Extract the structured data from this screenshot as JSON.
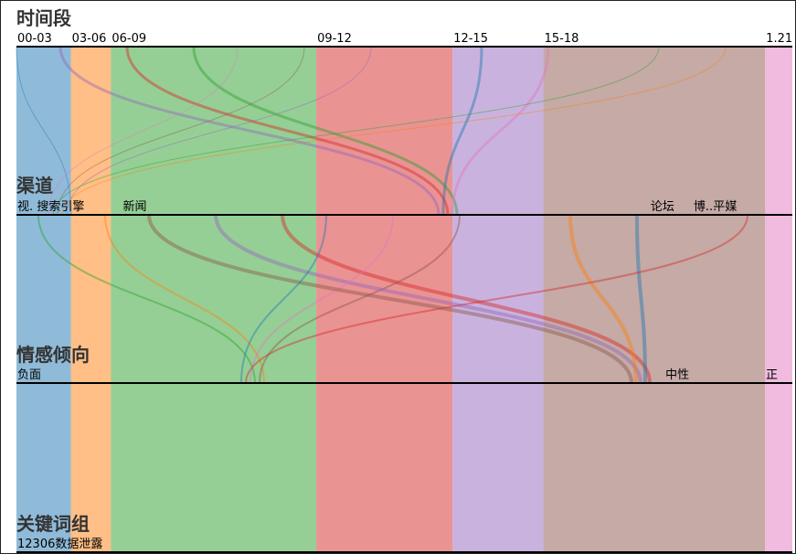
{
  "chart_data": {
    "type": "parallel-sets",
    "palette": {
      "blue": "#1f77b4",
      "orange": "#ff7f0e",
      "green": "#2ca02c",
      "red": "#d62728",
      "purple": "#9467bd",
      "brown": "#8c564b",
      "pink": "#e377c2",
      "gray": "#7f7f7f"
    },
    "dimensions": [
      {
        "title": "时间段",
        "categories": [
          "00-03",
          "03-06",
          "06-09",
          "",
          "09-12",
          "12-15",
          "15-18",
          "",
          "1.21"
        ],
        "category_weights": [
          60,
          44,
          226,
          0,
          150,
          100,
          244,
          0,
          30
        ]
      },
      {
        "title": "渠道",
        "categories": [
          "视.",
          "搜索引擎",
          "新闻",
          "",
          "",
          "",
          "",
          "论坛",
          "博...",
          "平媒"
        ],
        "category_weights": [
          20,
          88,
          540,
          0,
          0,
          0,
          0,
          44,
          20,
          82
        ]
      },
      {
        "title": "情感倾向",
        "categories": [
          "负面",
          "",
          "中性",
          "",
          "正"
        ],
        "category_weights": [
          710,
          0,
          110,
          0,
          30
        ]
      },
      {
        "title": "关键词组",
        "categories": [
          "12306数据泄露"
        ],
        "category_weights": [
          850
        ]
      }
    ]
  }
}
